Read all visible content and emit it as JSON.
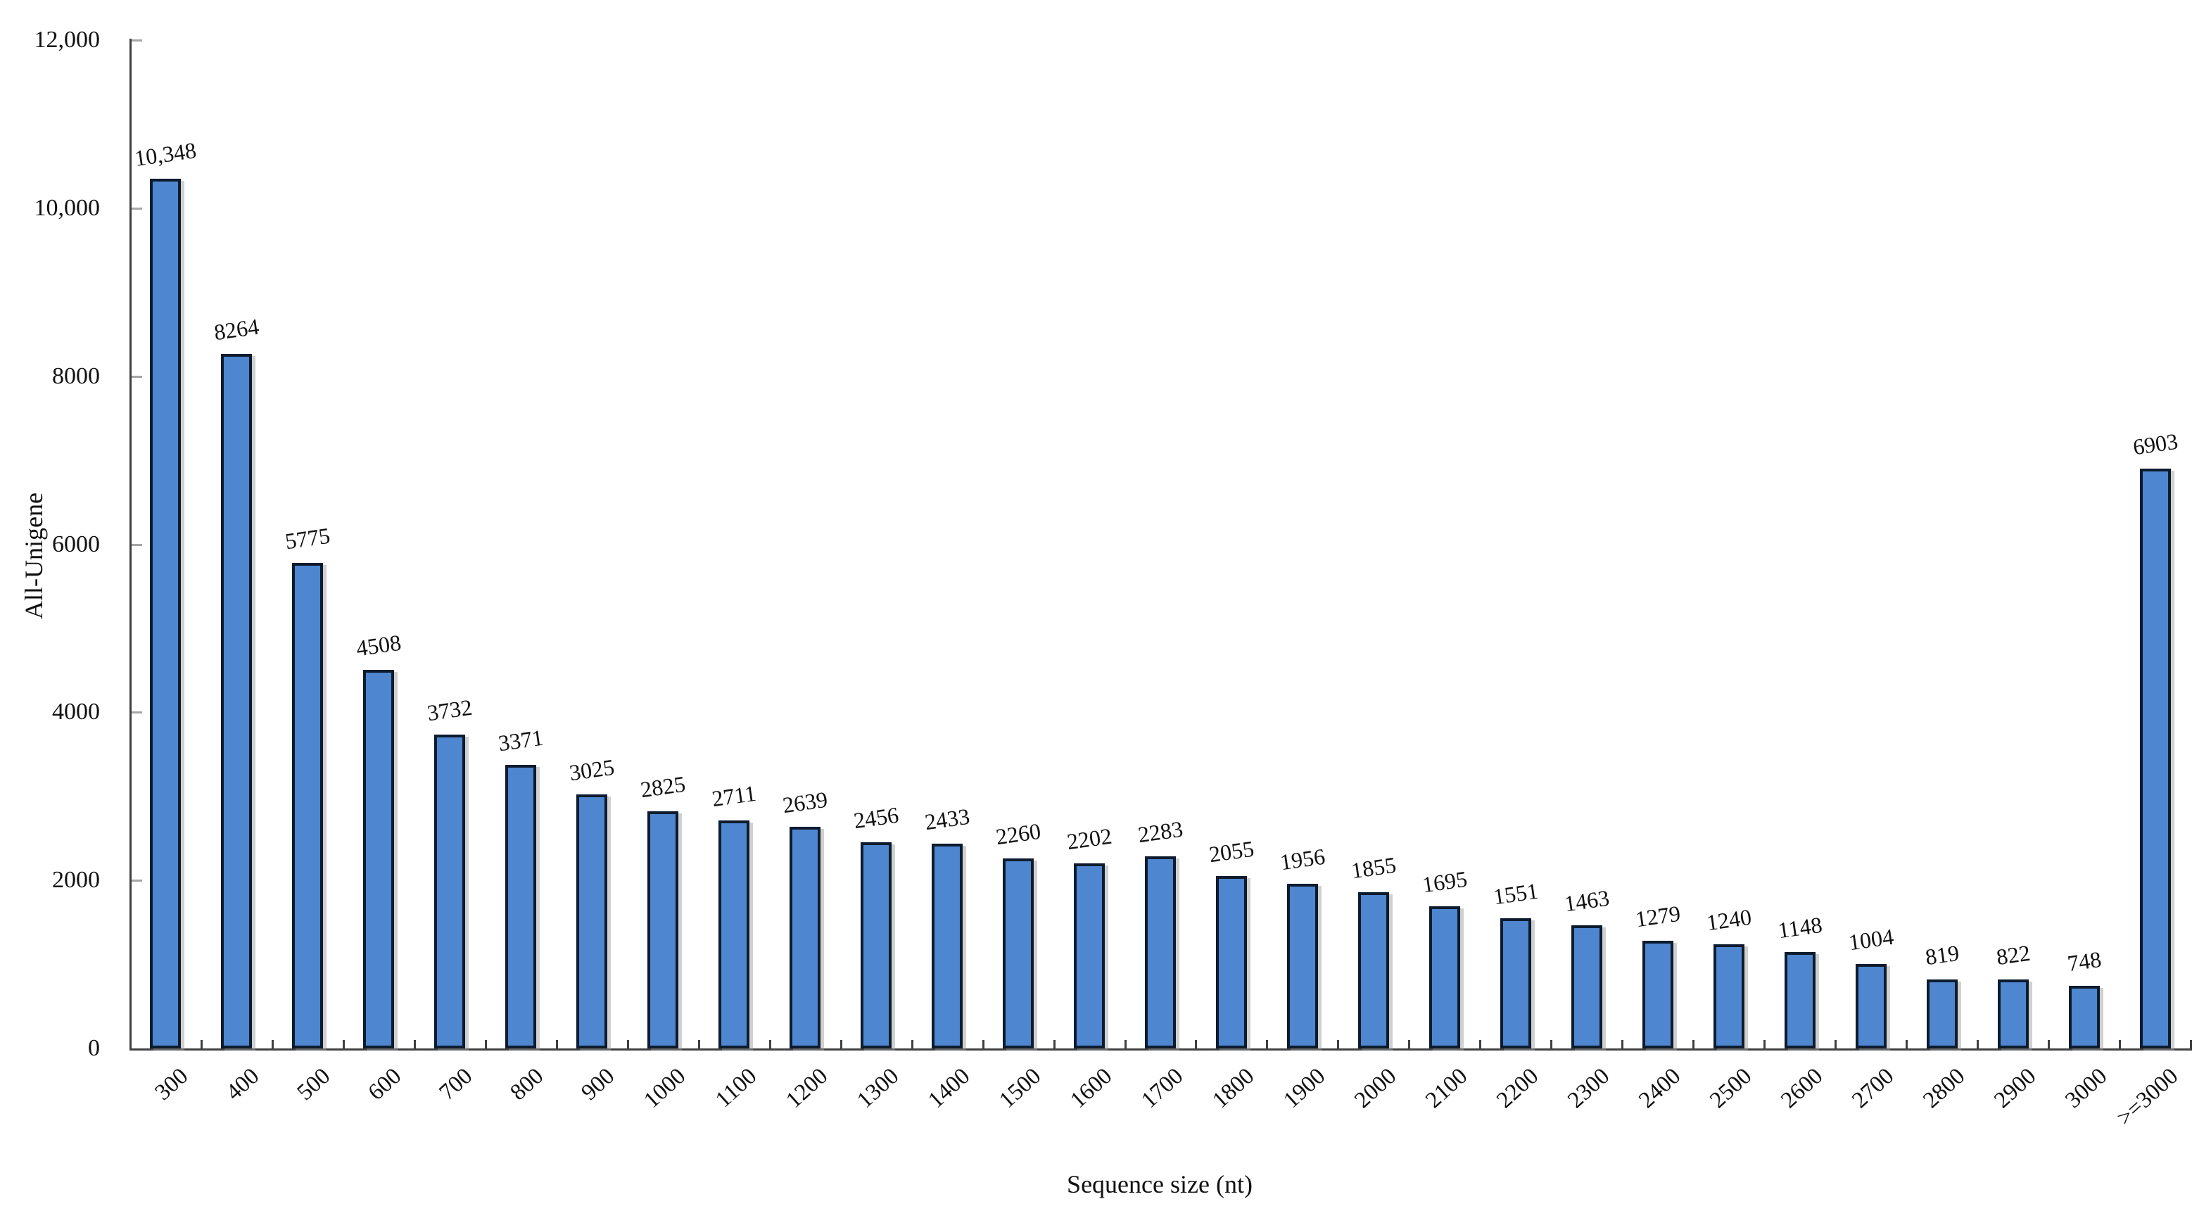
{
  "chart_data": {
    "type": "bar",
    "title": "",
    "xlabel": "Sequence size (nt)",
    "ylabel": "All-Unigene",
    "categories": [
      "300",
      "400",
      "500",
      "600",
      "700",
      "800",
      "900",
      "1000",
      "1100",
      "1200",
      "1300",
      "1400",
      "1500",
      "1600",
      "1700",
      "1800",
      "1900",
      "2000",
      "2100",
      "2200",
      "2300",
      "2400",
      "2500",
      "2600",
      "2700",
      "2800",
      "2900",
      "3000",
      ">=3000"
    ],
    "values": [
      10348,
      8264,
      5775,
      4508,
      3732,
      3371,
      3025,
      2825,
      2711,
      2639,
      2456,
      2433,
      2260,
      2202,
      2283,
      2055,
      1956,
      1855,
      1695,
      1551,
      1463,
      1279,
      1240,
      1148,
      1004,
      819,
      822,
      748,
      6903
    ],
    "value_labels": [
      "10,348",
      "8264",
      "5775",
      "4508",
      "3732",
      "3371",
      "3025",
      "2825",
      "2711",
      "2639",
      "2456",
      "2433",
      "2260",
      "2202",
      "2283",
      "2055",
      "1956",
      "1855",
      "1695",
      "1551",
      "1463",
      "1279",
      "1240",
      "1148",
      "1004",
      "819",
      "822",
      "748",
      "6903"
    ],
    "ylim": [
      0,
      12000
    ],
    "ytick_values": [
      0,
      2000,
      4000,
      6000,
      8000,
      10000,
      12000
    ],
    "ytick_labels": [
      "0",
      "2000",
      "4000",
      "6000",
      "8000",
      "10,000",
      "12,000"
    ],
    "grid": "off",
    "legend": "none",
    "colors": {
      "bar_fill": "#4e86cf",
      "bar_border": "#0d1b2e",
      "axis": "#404040",
      "text": "#111111",
      "minor_tick": "#a6a6a6"
    }
  }
}
